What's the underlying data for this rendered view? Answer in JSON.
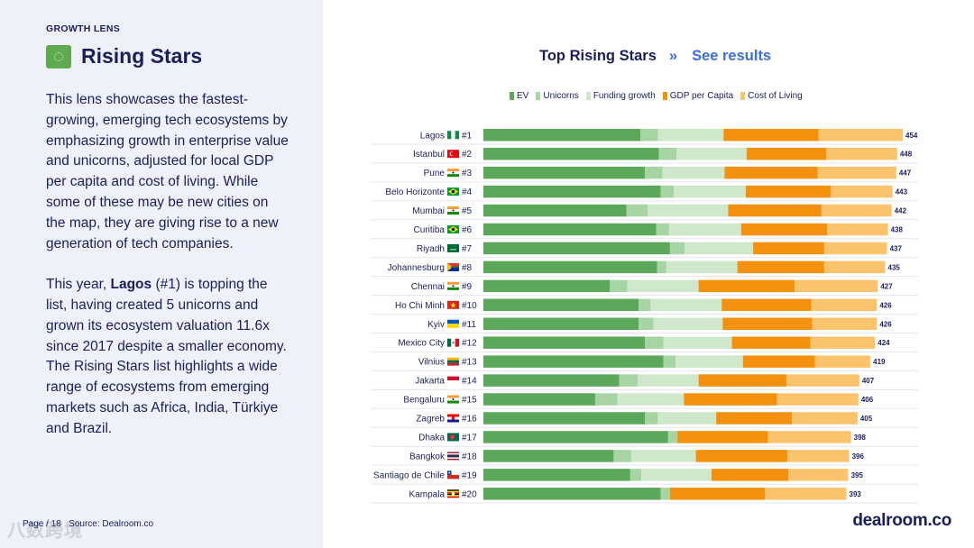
{
  "section_label": "GROWTH LENS",
  "title": "Rising Stars",
  "description": {
    "p1": "This lens showcases the fastest-growing, emerging tech ecosystems by emphasizing growth in enterprise value and unicorns, adjusted for local GDP per capita and cost of living. While some of these may be new cities on the map, they are giving rise to a new generation of tech companies.",
    "p2_pre": "This year, ",
    "p2_bold": "Lagos",
    "p2_post": " (#1) is topping the list, having created 5 unicorns and grown its ecosystem valuation 11.6x since 2017 despite a smaller economy.",
    "p3": "The Rising Stars list highlights a wide range of ecosystems from emerging markets such as Africa, India, Türkiye and Brazil."
  },
  "footer": {
    "page": "Page / 18",
    "source": "Source: Dealroom.co",
    "watermark": "八数跨境"
  },
  "brand": "dealroom.co",
  "chart_header": {
    "title": "Top Rising Stars",
    "separator": "»",
    "link": "See results"
  },
  "colors": {
    "ev": "#5ba85a",
    "unicorns": "#a6d4a3",
    "funding": "#cfe8cb",
    "gdp": "#f3910e",
    "col": "#fbc46c",
    "text": "#1a1f5c",
    "accent": "#3b6fe0"
  },
  "chart_data": {
    "type": "bar",
    "orientation": "horizontal",
    "stacked": true,
    "series": [
      {
        "key": "ev",
        "name": "EV",
        "values": [
          170,
          190,
          175,
          192,
          155,
          187,
          202,
          188,
          137,
          168,
          168,
          175,
          195,
          147,
          121,
          175,
          200,
          141,
          159,
          192
        ]
      },
      {
        "key": "unicorns",
        "name": "Unicorns",
        "values": [
          19,
          19,
          19,
          14,
          23,
          14,
          16,
          10,
          19,
          13,
          16,
          20,
          13,
          20,
          24,
          14,
          10,
          19,
          12,
          10
        ]
      },
      {
        "key": "funding",
        "name": "Funding growth",
        "values": [
          71,
          76,
          67,
          78,
          87,
          78,
          74,
          77,
          77,
          77,
          75,
          74,
          73,
          66,
          72,
          63,
          0,
          70,
          76,
          0
        ]
      },
      {
        "key": "gdp",
        "name": "GDP per Capita",
        "values": [
          103,
          86,
          101,
          92,
          101,
          93,
          77,
          94,
          104,
          97,
          97,
          85,
          78,
          95,
          101,
          82,
          98,
          99,
          83,
          103
        ]
      },
      {
        "key": "col",
        "name": "Cost of Living",
        "values": [
          91,
          77,
          85,
          67,
          76,
          66,
          68,
          66,
          90,
          71,
          70,
          70,
          60,
          79,
          88,
          71,
          90,
          67,
          65,
          88
        ]
      }
    ],
    "categories": [
      "Lagos",
      "Istanbul",
      "Pune",
      "Belo Horizonte",
      "Mumbai",
      "Curitiba",
      "Riyadh",
      "Johannesburg",
      "Chennai",
      "Ho Chi Minh",
      "Kyiv",
      "Mexico City",
      "Vilnius",
      "Jakarta",
      "Bengaluru",
      "Zagreb",
      "Dhaka",
      "Bangkok",
      "Santiago de Chile",
      "Kampala"
    ],
    "ranks": [
      "#1",
      "#2",
      "#3",
      "#4",
      "#5",
      "#6",
      "#7",
      "#8",
      "#9",
      "#10",
      "#11",
      "#12",
      "#13",
      "#14",
      "#15",
      "#16",
      "#17",
      "#18",
      "#19",
      "#20"
    ],
    "flags": [
      "NG",
      "TR",
      "IN",
      "BR",
      "IN",
      "BR",
      "SA",
      "ZA",
      "IN",
      "VN",
      "UA",
      "MX",
      "LT",
      "ID",
      "IN",
      "HR",
      "BD",
      "TH",
      "CL",
      "UG"
    ],
    "totals": [
      454,
      448,
      447,
      443,
      442,
      438,
      437,
      435,
      427,
      426,
      426,
      424,
      419,
      407,
      406,
      405,
      398,
      396,
      395,
      393
    ],
    "xlim": [
      0,
      454
    ],
    "legend_position": "top"
  }
}
